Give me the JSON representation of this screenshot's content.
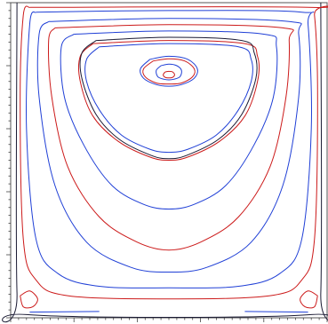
{
  "chart_data": {
    "type": "line",
    "title": "",
    "xlabel": "",
    "ylabel": "",
    "xlim": [
      0,
      1
    ],
    "ylim": [
      0,
      1
    ],
    "grid": false,
    "legend": "none",
    "colors": {
      "blue": "#1f3fd6",
      "red": "#cc1a1a",
      "dark": "#1a1a33",
      "frame": "#555555"
    },
    "series": [
      {
        "color": "dark",
        "points": [
          [
            0.02,
            1.0
          ],
          [
            0.02,
            0.08
          ],
          [
            0.05,
            0.01
          ],
          [
            0.95,
            0.01
          ],
          [
            0.98,
            0.08
          ],
          [
            0.98,
            1.0
          ]
        ]
      },
      {
        "color": "red",
        "points": [
          [
            0.06,
            0.985
          ],
          [
            0.94,
            0.985
          ],
          [
            0.96,
            0.96
          ],
          [
            0.97,
            0.7
          ],
          [
            0.96,
            0.25
          ],
          [
            0.92,
            0.12
          ],
          [
            0.82,
            0.07
          ],
          [
            0.5,
            0.06
          ],
          [
            0.18,
            0.07
          ],
          [
            0.08,
            0.12
          ],
          [
            0.04,
            0.25
          ],
          [
            0.03,
            0.7
          ],
          [
            0.04,
            0.96
          ],
          [
            0.06,
            0.985
          ]
        ]
      },
      {
        "color": "blue",
        "points": [
          [
            0.08,
            0.97
          ],
          [
            0.5,
            0.975
          ],
          [
            0.92,
            0.97
          ],
          [
            0.94,
            0.93
          ],
          [
            0.95,
            0.6
          ],
          [
            0.92,
            0.25
          ],
          [
            0.85,
            0.14
          ],
          [
            0.72,
            0.1
          ],
          [
            0.5,
            0.095
          ],
          [
            0.28,
            0.1
          ],
          [
            0.15,
            0.14
          ],
          [
            0.08,
            0.25
          ],
          [
            0.05,
            0.6
          ],
          [
            0.06,
            0.93
          ],
          [
            0.08,
            0.97
          ]
        ]
      },
      {
        "color": "blue",
        "points": [
          [
            0.12,
            0.94
          ],
          [
            0.5,
            0.95
          ],
          [
            0.88,
            0.94
          ],
          [
            0.91,
            0.9
          ],
          [
            0.91,
            0.7
          ],
          [
            0.86,
            0.42
          ],
          [
            0.76,
            0.24
          ],
          [
            0.62,
            0.16
          ],
          [
            0.5,
            0.145
          ],
          [
            0.38,
            0.16
          ],
          [
            0.24,
            0.24
          ],
          [
            0.14,
            0.42
          ],
          [
            0.09,
            0.7
          ],
          [
            0.09,
            0.9
          ],
          [
            0.12,
            0.94
          ]
        ]
      },
      {
        "color": "red",
        "points": [
          [
            0.14,
            0.92
          ],
          [
            0.5,
            0.93
          ],
          [
            0.86,
            0.92
          ],
          [
            0.88,
            0.88
          ],
          [
            0.87,
            0.7
          ],
          [
            0.82,
            0.48
          ],
          [
            0.72,
            0.32
          ],
          [
            0.6,
            0.24
          ],
          [
            0.5,
            0.215
          ],
          [
            0.4,
            0.24
          ],
          [
            0.28,
            0.32
          ],
          [
            0.18,
            0.48
          ],
          [
            0.13,
            0.7
          ],
          [
            0.12,
            0.88
          ],
          [
            0.14,
            0.92
          ]
        ]
      },
      {
        "color": "blue",
        "points": [
          [
            0.2,
            0.9
          ],
          [
            0.5,
            0.91
          ],
          [
            0.8,
            0.9
          ],
          [
            0.84,
            0.86
          ],
          [
            0.83,
            0.7
          ],
          [
            0.77,
            0.55
          ],
          [
            0.68,
            0.42
          ],
          [
            0.58,
            0.36
          ],
          [
            0.5,
            0.345
          ],
          [
            0.42,
            0.36
          ],
          [
            0.32,
            0.42
          ],
          [
            0.23,
            0.55
          ],
          [
            0.17,
            0.7
          ],
          [
            0.16,
            0.86
          ],
          [
            0.2,
            0.9
          ]
        ]
      },
      {
        "color": "red",
        "points": [
          [
            0.26,
            0.87
          ],
          [
            0.5,
            0.88
          ],
          [
            0.74,
            0.87
          ],
          [
            0.78,
            0.83
          ],
          [
            0.78,
            0.75
          ],
          [
            0.74,
            0.64
          ],
          [
            0.66,
            0.56
          ],
          [
            0.56,
            0.51
          ],
          [
            0.5,
            0.5
          ],
          [
            0.44,
            0.51
          ],
          [
            0.34,
            0.56
          ],
          [
            0.26,
            0.64
          ],
          [
            0.22,
            0.75
          ],
          [
            0.22,
            0.83
          ],
          [
            0.26,
            0.87
          ]
        ]
      },
      {
        "color": "dark",
        "points": [
          [
            0.27,
            0.88
          ],
          [
            0.5,
            0.89
          ],
          [
            0.73,
            0.88
          ],
          [
            0.77,
            0.84
          ],
          [
            0.775,
            0.76
          ],
          [
            0.73,
            0.645
          ],
          [
            0.655,
            0.565
          ],
          [
            0.555,
            0.515
          ],
          [
            0.5,
            0.505
          ],
          [
            0.445,
            0.515
          ],
          [
            0.345,
            0.565
          ],
          [
            0.27,
            0.645
          ],
          [
            0.225,
            0.76
          ],
          [
            0.225,
            0.84
          ],
          [
            0.27,
            0.88
          ]
        ]
      },
      {
        "color": "blue",
        "points": [
          [
            0.28,
            0.86
          ],
          [
            0.5,
            0.87
          ],
          [
            0.72,
            0.86
          ],
          [
            0.76,
            0.82
          ],
          [
            0.76,
            0.75
          ],
          [
            0.72,
            0.66
          ],
          [
            0.65,
            0.58
          ],
          [
            0.56,
            0.535
          ],
          [
            0.5,
            0.525
          ],
          [
            0.44,
            0.535
          ],
          [
            0.35,
            0.58
          ],
          [
            0.28,
            0.66
          ],
          [
            0.24,
            0.75
          ],
          [
            0.24,
            0.82
          ],
          [
            0.28,
            0.86
          ]
        ]
      },
      {
        "color": "blue",
        "points": [
          [
            0.44,
            0.82
          ],
          [
            0.5,
            0.83
          ],
          [
            0.56,
            0.82
          ],
          [
            0.59,
            0.79
          ],
          [
            0.58,
            0.76
          ],
          [
            0.54,
            0.74
          ],
          [
            0.5,
            0.735
          ],
          [
            0.46,
            0.74
          ],
          [
            0.42,
            0.76
          ],
          [
            0.41,
            0.79
          ],
          [
            0.44,
            0.82
          ]
        ]
      },
      {
        "color": "red",
        "points": [
          [
            0.45,
            0.815
          ],
          [
            0.5,
            0.822
          ],
          [
            0.55,
            0.815
          ],
          [
            0.58,
            0.79
          ],
          [
            0.575,
            0.765
          ],
          [
            0.54,
            0.745
          ],
          [
            0.5,
            0.742
          ],
          [
            0.46,
            0.745
          ],
          [
            0.425,
            0.765
          ],
          [
            0.42,
            0.79
          ],
          [
            0.45,
            0.815
          ]
        ]
      },
      {
        "color": "blue",
        "points": [
          [
            0.475,
            0.8
          ],
          [
            0.5,
            0.805
          ],
          [
            0.525,
            0.8
          ],
          [
            0.54,
            0.785
          ],
          [
            0.535,
            0.765
          ],
          [
            0.515,
            0.757
          ],
          [
            0.5,
            0.755
          ],
          [
            0.485,
            0.757
          ],
          [
            0.465,
            0.765
          ],
          [
            0.46,
            0.785
          ],
          [
            0.475,
            0.8
          ]
        ]
      },
      {
        "color": "red",
        "points": [
          [
            0.488,
            0.78
          ],
          [
            0.5,
            0.782
          ],
          [
            0.512,
            0.78
          ],
          [
            0.518,
            0.771
          ],
          [
            0.512,
            0.763
          ],
          [
            0.5,
            0.761
          ],
          [
            0.488,
            0.763
          ],
          [
            0.482,
            0.771
          ],
          [
            0.488,
            0.78
          ]
        ]
      },
      {
        "color": "red",
        "points": [
          [
            0.03,
            0.07
          ],
          [
            0.06,
            0.085
          ],
          [
            0.085,
            0.06
          ],
          [
            0.07,
            0.035
          ],
          [
            0.04,
            0.035
          ],
          [
            0.03,
            0.07
          ]
        ]
      },
      {
        "color": "red",
        "points": [
          [
            0.97,
            0.07
          ],
          [
            0.94,
            0.085
          ],
          [
            0.915,
            0.06
          ],
          [
            0.93,
            0.035
          ],
          [
            0.96,
            0.035
          ],
          [
            0.97,
            0.07
          ]
        ]
      },
      {
        "color": "blue",
        "points": [
          [
            0.06,
            0.018
          ],
          [
            0.28,
            0.02
          ]
        ]
      },
      {
        "color": "blue",
        "points": [
          [
            0.74,
            0.02
          ],
          [
            0.94,
            0.018
          ]
        ]
      }
    ]
  }
}
